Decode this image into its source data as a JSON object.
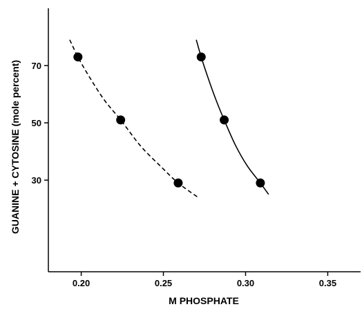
{
  "chart_data": {
    "type": "scatter",
    "title": "",
    "xlabel": "M PHOSPHATE",
    "ylabel": "GUANINE + CYTOSINE (mole percent)",
    "xlim": [
      0.18,
      0.37
    ],
    "ylim": [
      -2,
      90
    ],
    "x_ticks": [
      0.2,
      0.25,
      0.3,
      0.35
    ],
    "x_tick_labels": [
      "0.20",
      "0.25",
      "0.30",
      "0.35"
    ],
    "y_ticks": [
      30,
      50,
      70
    ],
    "y_tick_labels": [
      "30",
      "50",
      "70"
    ],
    "grid": false,
    "legend": "none",
    "series": [
      {
        "line_style": "dashed",
        "color": "#000000",
        "points": [
          {
            "x": 0.198,
            "y": 73
          },
          {
            "x": 0.224,
            "y": 51
          },
          {
            "x": 0.259,
            "y": 29
          }
        ],
        "curve": [
          {
            "x": 0.193,
            "y": 79
          },
          {
            "x": 0.198,
            "y": 73
          },
          {
            "x": 0.205,
            "y": 66
          },
          {
            "x": 0.214,
            "y": 58
          },
          {
            "x": 0.224,
            "y": 51
          },
          {
            "x": 0.236,
            "y": 42
          },
          {
            "x": 0.248,
            "y": 35
          },
          {
            "x": 0.259,
            "y": 29
          },
          {
            "x": 0.271,
            "y": 24
          }
        ]
      },
      {
        "line_style": "solid",
        "color": "#000000",
        "points": [
          {
            "x": 0.273,
            "y": 73
          },
          {
            "x": 0.287,
            "y": 51
          },
          {
            "x": 0.309,
            "y": 29
          }
        ],
        "curve": [
          {
            "x": 0.27,
            "y": 79
          },
          {
            "x": 0.273,
            "y": 73
          },
          {
            "x": 0.277,
            "y": 66
          },
          {
            "x": 0.282,
            "y": 58
          },
          {
            "x": 0.287,
            "y": 51
          },
          {
            "x": 0.294,
            "y": 42
          },
          {
            "x": 0.301,
            "y": 35
          },
          {
            "x": 0.309,
            "y": 29
          },
          {
            "x": 0.314,
            "y": 25
          }
        ]
      }
    ]
  }
}
